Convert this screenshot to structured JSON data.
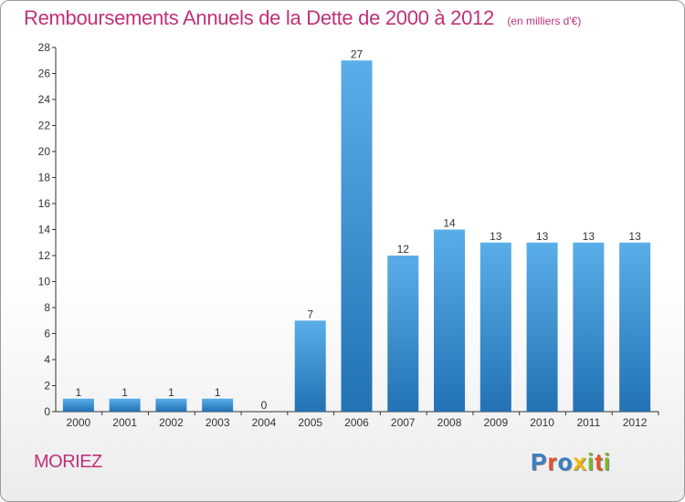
{
  "title": "Remboursements Annuels de la Dette de 2000 à 2012",
  "subtitle": "(en milliers d'€)",
  "commune": "MORIEZ",
  "logo": {
    "letters": [
      "P",
      "r",
      "o",
      "x",
      "i",
      "t",
      "i"
    ],
    "colors": [
      "#3a7fc4",
      "#e2562a",
      "#3a7fc4",
      "#f2b600",
      "#7ab52e",
      "#e2562a",
      "#7ab52e"
    ]
  },
  "colors": {
    "bar_top": "#5aaee8",
    "bar_bottom": "#2272b4",
    "title": "#c0307a"
  },
  "chart_data": {
    "type": "bar",
    "title": "Remboursements Annuels de la Dette de 2000 à 2012",
    "categories": [
      "2000",
      "2001",
      "2002",
      "2003",
      "2004",
      "2005",
      "2006",
      "2007",
      "2008",
      "2009",
      "2010",
      "2011",
      "2012"
    ],
    "values": [
      1,
      1,
      1,
      1,
      0,
      7,
      27,
      12,
      14,
      13,
      13,
      13,
      13
    ],
    "ylim": [
      0,
      28
    ],
    "yticks": [
      0,
      2,
      4,
      6,
      8,
      10,
      12,
      14,
      16,
      18,
      20,
      22,
      24,
      26,
      28
    ],
    "grid": false,
    "legend": "none"
  }
}
